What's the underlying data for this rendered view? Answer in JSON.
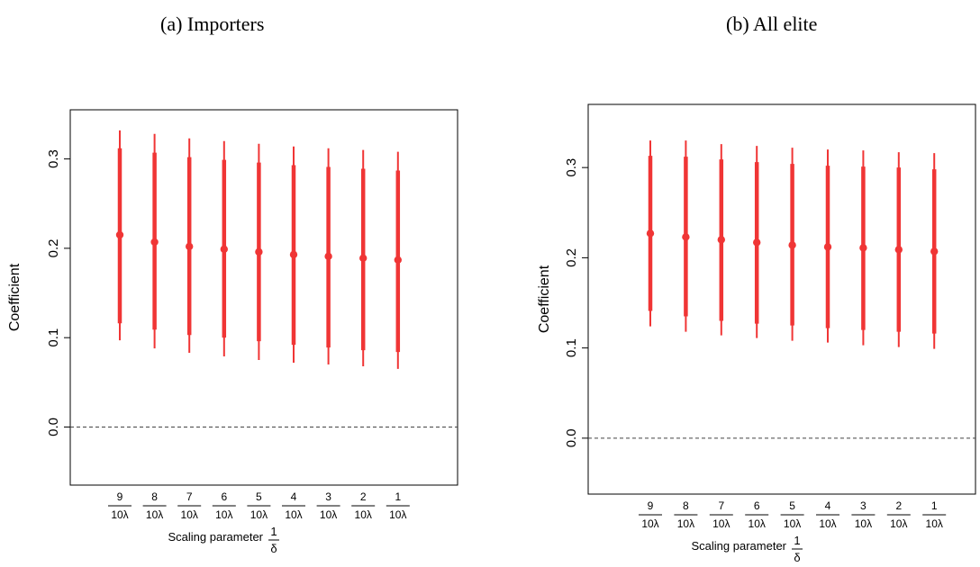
{
  "chart_data": [
    {
      "type": "scatter",
      "title": "(a) Importers",
      "xlabel": "Scaling parameter",
      "xlabel_math": {
        "num": "1",
        "den": "δ"
      },
      "ylabel": "Coefficient",
      "categories": [
        {
          "num": "9",
          "den": "10λ"
        },
        {
          "num": "8",
          "den": "10λ"
        },
        {
          "num": "7",
          "den": "10λ"
        },
        {
          "num": "6",
          "den": "10λ"
        },
        {
          "num": "5",
          "den": "10λ"
        },
        {
          "num": "4",
          "den": "10λ"
        },
        {
          "num": "3",
          "den": "10λ"
        },
        {
          "num": "2",
          "den": "10λ"
        },
        {
          "num": "1",
          "den": "10λ"
        }
      ],
      "estimates": [
        0.215,
        0.207,
        0.202,
        0.199,
        0.196,
        0.193,
        0.191,
        0.189,
        0.187
      ],
      "ci90_low": [
        0.116,
        0.109,
        0.103,
        0.1,
        0.096,
        0.092,
        0.089,
        0.086,
        0.084
      ],
      "ci90_high": [
        0.312,
        0.307,
        0.302,
        0.299,
        0.296,
        0.293,
        0.291,
        0.289,
        0.287
      ],
      "ci95_low": [
        0.097,
        0.088,
        0.083,
        0.079,
        0.075,
        0.072,
        0.07,
        0.068,
        0.065
      ],
      "ci95_high": [
        0.332,
        0.328,
        0.323,
        0.32,
        0.317,
        0.314,
        0.312,
        0.31,
        0.308
      ],
      "ylim": [
        -0.065,
        0.355
      ],
      "yticks": [
        0.0,
        0.1,
        0.2,
        0.3
      ],
      "ytick_labels": [
        "0.0",
        "0.1",
        "0.2",
        "0.3"
      ],
      "reference_line": 0.0,
      "color": "#f03535",
      "grid": false
    },
    {
      "type": "scatter",
      "title": "(b) All elite",
      "xlabel": "Scaling parameter",
      "xlabel_math": {
        "num": "1",
        "den": "δ"
      },
      "ylabel": "Coefficient",
      "categories": [
        {
          "num": "9",
          "den": "10λ"
        },
        {
          "num": "8",
          "den": "10λ"
        },
        {
          "num": "7",
          "den": "10λ"
        },
        {
          "num": "6",
          "den": "10λ"
        },
        {
          "num": "5",
          "den": "10λ"
        },
        {
          "num": "4",
          "den": "10λ"
        },
        {
          "num": "3",
          "den": "10λ"
        },
        {
          "num": "2",
          "den": "10λ"
        },
        {
          "num": "1",
          "den": "10λ"
        }
      ],
      "estimates": [
        0.227,
        0.223,
        0.22,
        0.217,
        0.214,
        0.212,
        0.211,
        0.209,
        0.207
      ],
      "ci90_low": [
        0.141,
        0.135,
        0.13,
        0.127,
        0.125,
        0.122,
        0.12,
        0.118,
        0.116
      ],
      "ci90_high": [
        0.313,
        0.312,
        0.309,
        0.306,
        0.304,
        0.302,
        0.301,
        0.3,
        0.298
      ],
      "ci95_low": [
        0.124,
        0.118,
        0.114,
        0.111,
        0.108,
        0.106,
        0.103,
        0.101,
        0.099
      ],
      "ci95_high": [
        0.33,
        0.33,
        0.326,
        0.324,
        0.322,
        0.32,
        0.319,
        0.317,
        0.316
      ],
      "ylim": [
        -0.062,
        0.37
      ],
      "yticks": [
        0.0,
        0.1,
        0.2,
        0.3
      ],
      "ytick_labels": [
        "0.0",
        "0.1",
        "0.2",
        "0.3"
      ],
      "reference_line": 0.0,
      "color": "#f03535",
      "grid": false
    }
  ]
}
